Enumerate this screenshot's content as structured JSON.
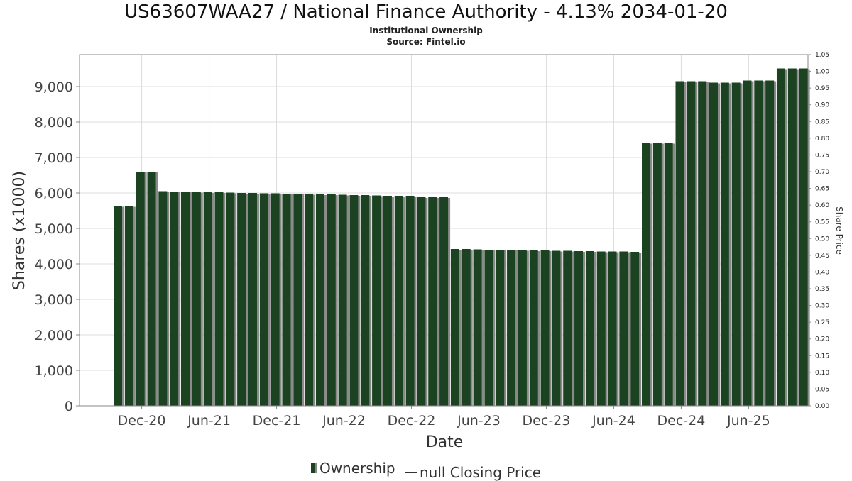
{
  "title": "US63607WAA27 / National Finance Authority - 4.13% 2034-01-20",
  "subtitle": "Institutional Ownership",
  "source": "Source: Fintel.io",
  "legend": {
    "ownership_label": "Ownership",
    "price_label": "null Closing Price"
  },
  "chart_data": {
    "type": "bar",
    "xlabel": "Date",
    "ylabel": "Shares (x1000)",
    "y2label": "Share Price",
    "ylim": [
      0,
      9900
    ],
    "y2lim": [
      0,
      1.05
    ],
    "yticks": [
      "0",
      "1,000",
      "2,000",
      "3,000",
      "4,000",
      "5,000",
      "6,000",
      "7,000",
      "8,000",
      "9,000"
    ],
    "y2ticks": [
      "0.00",
      "0.05",
      "0.10",
      "0.15",
      "0.20",
      "0.25",
      "0.30",
      "0.35",
      "0.40",
      "0.45",
      "0.50",
      "0.55",
      "0.60",
      "0.65",
      "0.70",
      "0.75",
      "0.80",
      "0.85",
      "0.90",
      "0.95",
      "1.00",
      "1.05"
    ],
    "xticks": [
      "Dec-20",
      "Jun-21",
      "Dec-21",
      "Jun-22",
      "Dec-22",
      "Jun-23",
      "Dec-23",
      "Jun-24",
      "Dec-24",
      "Jun-25"
    ],
    "grid": true,
    "colors": {
      "bar": "#1b4321",
      "shadow": "#8a8a8a",
      "grid": "#dcdcdc",
      "axis": "#888888"
    },
    "series": [
      {
        "name": "Ownership",
        "values": [
          5630,
          5630,
          6600,
          6600,
          6050,
          6040,
          6040,
          6030,
          6020,
          6020,
          6010,
          6000,
          6000,
          5990,
          5990,
          5980,
          5980,
          5970,
          5960,
          5960,
          5950,
          5940,
          5940,
          5930,
          5920,
          5920,
          5920,
          5880,
          5880,
          5880,
          4420,
          4420,
          4410,
          4400,
          4400,
          4400,
          4390,
          4380,
          4380,
          4370,
          4370,
          4360,
          4360,
          4350,
          4350,
          4350,
          4340,
          7410,
          7410,
          7410,
          9150,
          9150,
          9150,
          9110,
          9110,
          9110,
          9170,
          9170,
          9170,
          9510,
          9510,
          9510
        ]
      }
    ]
  }
}
